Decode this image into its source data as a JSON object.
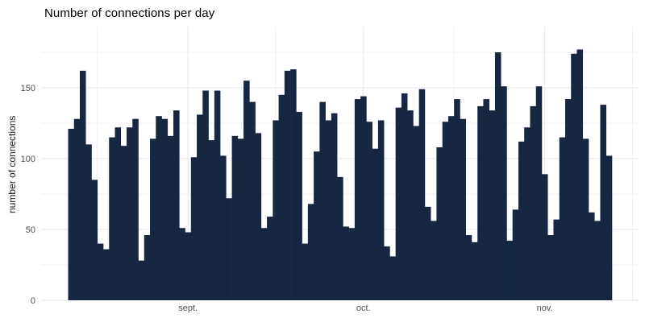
{
  "chart_data": {
    "type": "bar",
    "title": "Number of connections per day",
    "ylabel": "number of connections",
    "xlabel": "",
    "x_unit": "day",
    "n_bars": 93,
    "values": [
      121,
      128,
      162,
      110,
      85,
      40,
      36,
      115,
      122,
      109,
      122,
      128,
      28,
      46,
      114,
      130,
      128,
      116,
      134,
      51,
      48,
      101,
      131,
      148,
      113,
      148,
      102,
      72,
      116,
      114,
      155,
      140,
      118,
      51,
      59,
      127,
      145,
      162,
      163,
      133,
      40,
      68,
      105,
      140,
      127,
      132,
      87,
      52,
      51,
      142,
      144,
      126,
      107,
      127,
      38,
      31,
      136,
      146,
      134,
      123,
      149,
      66,
      56,
      108,
      126,
      130,
      142,
      128,
      46,
      41,
      137,
      142,
      134,
      175,
      151,
      42,
      64,
      112,
      122,
      137,
      151,
      89,
      46,
      57,
      115,
      142,
      174,
      177,
      114,
      62,
      56,
      138,
      102
    ],
    "x_ticks": [
      {
        "label": "sept.",
        "index": 20
      },
      {
        "label": "oct.",
        "index": 50
      },
      {
        "label": "nov.",
        "index": 81
      }
    ],
    "x_minor_tick_indices": [
      4.5,
      35,
      65.5,
      96
    ],
    "y_ticks": [
      {
        "label": "0",
        "value": 0
      },
      {
        "label": "50",
        "value": 50
      },
      {
        "label": "100",
        "value": 100
      },
      {
        "label": "150",
        "value": 150
      }
    ],
    "y_minor_values": [
      25,
      75,
      125,
      175
    ],
    "ylim": [
      0,
      193
    ],
    "grid": "on",
    "legend": "none",
    "colors": {
      "bar_fill": "#172741",
      "grid_major": "#e7e7e7",
      "grid_minor": "#f1f1f1",
      "axis_text": "#4d4d4d",
      "title_text": "#000000",
      "background": "#ffffff"
    }
  }
}
